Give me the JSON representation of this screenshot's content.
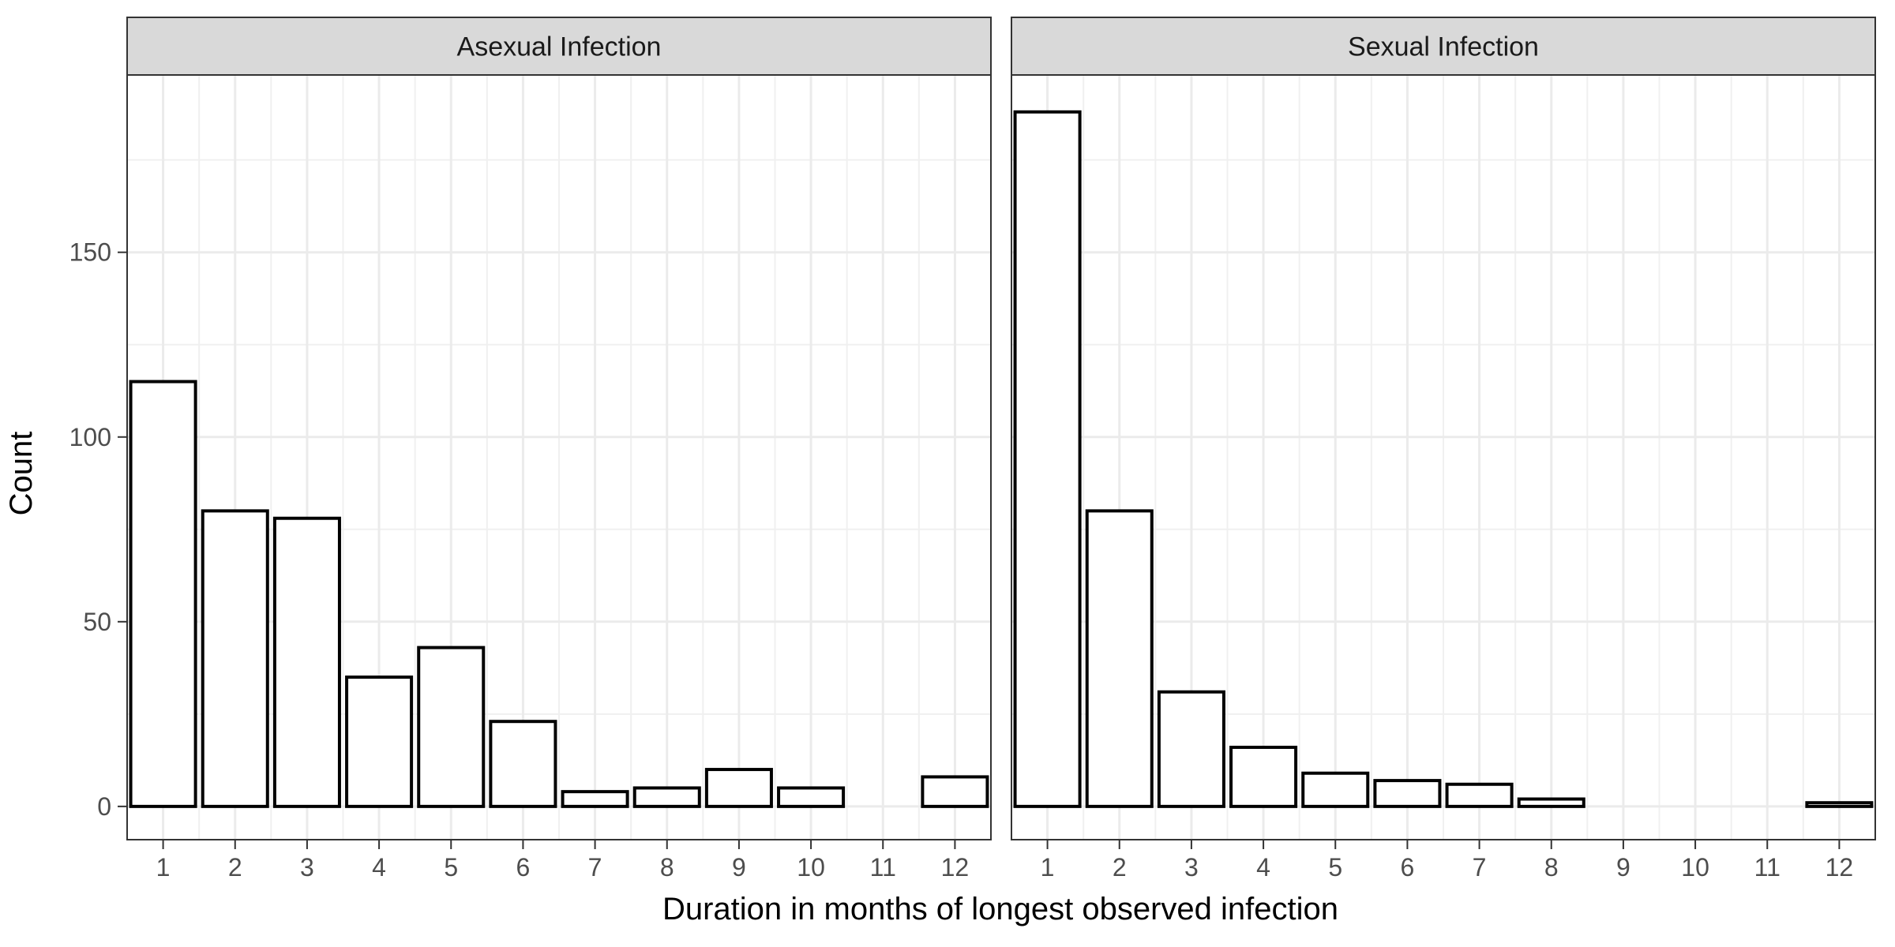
{
  "chart_data": {
    "type": "bar",
    "xlabel": "Duration in months of longest observed infection",
    "ylabel": "Count",
    "ylim": [
      -9,
      198
    ],
    "y_ticks": [
      0,
      50,
      100,
      150
    ],
    "y_tick_labels": [
      "0",
      "50",
      "100",
      "150"
    ],
    "x_ticks": [
      1,
      2,
      3,
      4,
      5,
      6,
      7,
      8,
      9,
      10,
      11,
      12
    ],
    "x_tick_labels": [
      "1",
      "2",
      "3",
      "4",
      "5",
      "6",
      "7",
      "8",
      "9",
      "10",
      "11",
      "12"
    ],
    "xlim": [
      0.5,
      12.5
    ],
    "grid": true,
    "bar_fill": "#ffffff",
    "bar_stroke": "#000000",
    "facet_strip_fill": "#d9d9d9",
    "panels": [
      {
        "strip_label": "Asexual Infection",
        "categories": [
          1,
          2,
          3,
          4,
          5,
          6,
          7,
          8,
          9,
          10,
          11,
          12
        ],
        "values": [
          115,
          80,
          78,
          35,
          43,
          23,
          4,
          5,
          10,
          5,
          0,
          8
        ]
      },
      {
        "strip_label": "Sexual Infection",
        "categories": [
          1,
          2,
          3,
          4,
          5,
          6,
          7,
          8,
          9,
          10,
          11,
          12
        ],
        "values": [
          188,
          80,
          31,
          16,
          9,
          7,
          6,
          2,
          0,
          0,
          0,
          1
        ]
      }
    ]
  }
}
